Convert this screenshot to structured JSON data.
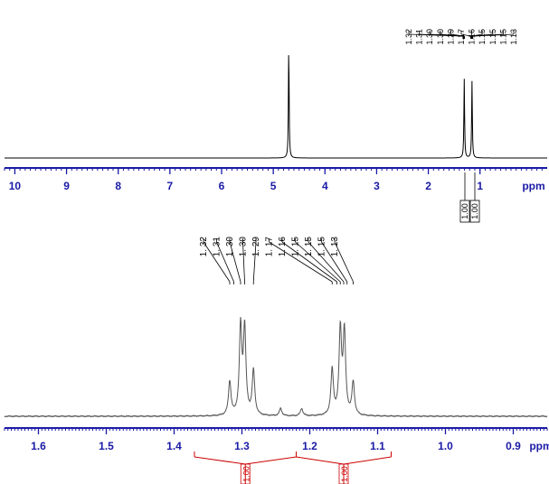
{
  "colors": {
    "axis": "#1a1aa6",
    "trace": "#000000",
    "trace_zoom": "#555555",
    "integral": "#cc0000",
    "background": "#ffffff"
  },
  "chart_data": [
    {
      "type": "line",
      "xunit": "ppm",
      "xlim": [
        10.2,
        -0.3
      ],
      "tick_labels": [
        "10",
        "9",
        "8",
        "7",
        "6",
        "5",
        "4",
        "3",
        "2",
        "1"
      ],
      "tick_values": [
        10,
        9,
        8,
        7,
        6,
        5,
        4,
        3,
        2,
        1
      ],
      "minor_tick_step": 0.1,
      "peaks": [
        {
          "x": 4.7,
          "height": 1.0
        },
        {
          "x": 1.305,
          "height": 0.7
        },
        {
          "x": 1.155,
          "height": 0.68
        }
      ],
      "peak_labels": [
        "1.32",
        "1.31",
        "1.30",
        "1.30",
        "1.29",
        "1.17",
        "1.16",
        "1.15",
        "1.15",
        "1.15",
        "1.13"
      ],
      "integrals": [
        {
          "from": 1.36,
          "to": 1.26,
          "value": "1.00"
        },
        {
          "from": 1.22,
          "to": 1.1,
          "value": "1.00"
        }
      ]
    },
    {
      "type": "line",
      "xunit": "ppm",
      "xlim": [
        1.65,
        0.85
      ],
      "tick_labels": [
        "1.6",
        "1.5",
        "1.4",
        "1.3",
        "1.2",
        "1.1",
        "1.0",
        "0.9"
      ],
      "tick_values": [
        1.6,
        1.5,
        1.4,
        1.3,
        1.2,
        1.1,
        1.0,
        0.9
      ],
      "minor_tick_step": 0.005,
      "peaks": [
        {
          "x": 1.318,
          "height": 0.32
        },
        {
          "x": 1.302,
          "height": 0.82
        },
        {
          "x": 1.296,
          "height": 0.8
        },
        {
          "x": 1.283,
          "height": 0.42
        },
        {
          "x": 1.243,
          "height": 0.07
        },
        {
          "x": 1.212,
          "height": 0.07
        },
        {
          "x": 1.167,
          "height": 0.43
        },
        {
          "x": 1.155,
          "height": 0.79
        },
        {
          "x": 1.149,
          "height": 0.77
        },
        {
          "x": 1.136,
          "height": 0.31
        }
      ],
      "peak_labels": [
        "1. 32",
        "1. 31",
        "1. 30",
        "1. 30",
        "1. 29",
        "1. 17",
        "1. 16",
        "1. 15",
        "1. 15",
        "1. 15",
        "1. 13"
      ],
      "integrals": [
        {
          "from": 1.37,
          "to": 1.22,
          "value": "1.00"
        },
        {
          "from": 1.22,
          "to": 1.08,
          "value": "1.00"
        }
      ]
    }
  ]
}
